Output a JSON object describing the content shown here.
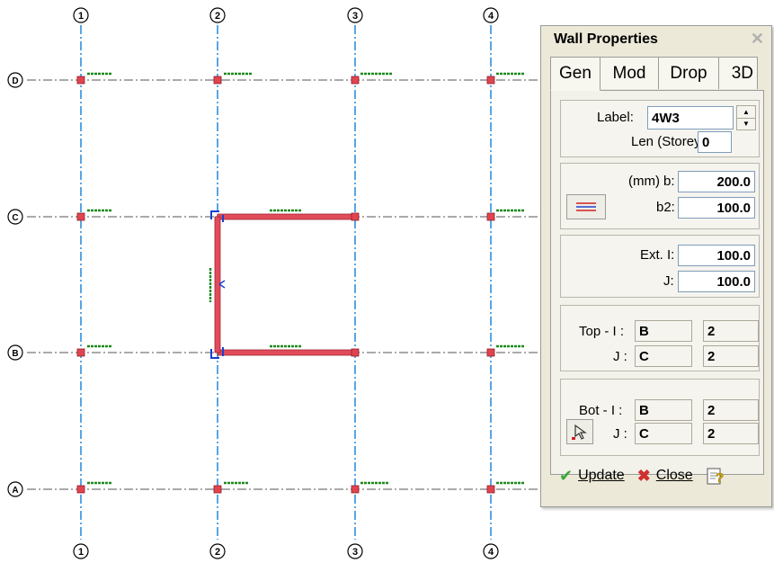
{
  "grid": {
    "columns": [
      "1",
      "2",
      "3",
      "4"
    ],
    "rows": [
      "D",
      "C",
      "B",
      "A"
    ]
  },
  "colors": {
    "gridline": "#2f8fe0",
    "wall": "#e24b5a",
    "label_text": "#1d8a1d",
    "node": "#e2444f",
    "selection": "#1a3fd0"
  },
  "panel": {
    "title": "Wall Properties",
    "close_icon": "close-icon",
    "tabs": [
      "Gen",
      "Mod",
      "Drop",
      "3D"
    ],
    "active_tab": "Gen",
    "label_caption": "Label:",
    "label_value": "4W3",
    "len_caption": "Len (Storey)",
    "len_value": "0",
    "units": "(mm)",
    "b_caption": "b:",
    "b_value": "200.0",
    "b2_caption": "b2:",
    "b2_value": "100.0",
    "ext_i_caption": "Ext. I:",
    "ext_i_value": "100.0",
    "ext_j_caption": "J:",
    "ext_j_value": "100.0",
    "top_i_caption": "Top  - I :",
    "top_i_grid": "B",
    "top_i_col": "2",
    "top_j_caption": "J :",
    "top_j_grid": "C",
    "top_j_col": "2",
    "bot_i_caption": "Bot  - I :",
    "bot_i_grid": "B",
    "bot_i_col": "2",
    "bot_j_caption": "J :",
    "bot_j_grid": "C",
    "bot_j_col": "2",
    "update_label": "Update",
    "close_label": "Close"
  }
}
